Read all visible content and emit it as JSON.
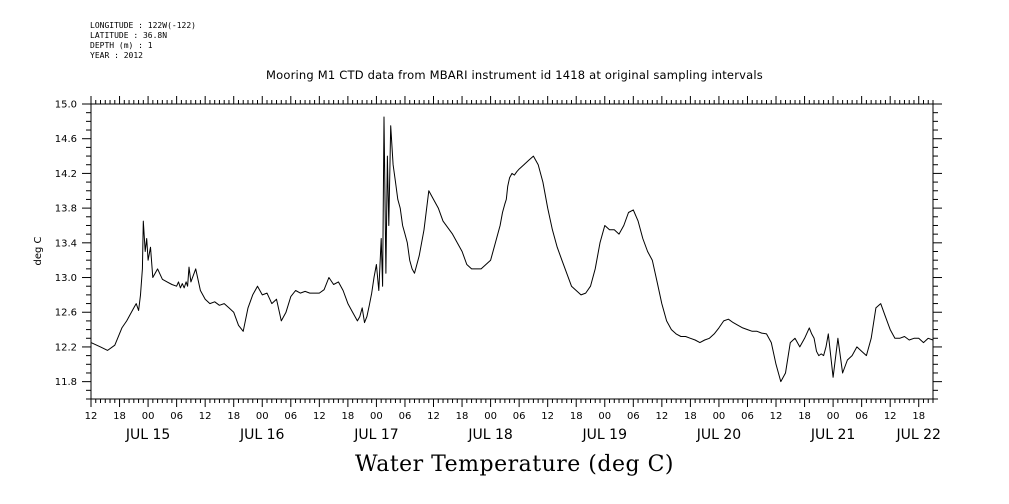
{
  "meta": {
    "longitude": "LONGITUDE : 122W(-122)",
    "latitude": "LATITUDE : 36.8N",
    "depth": "DEPTH (m) : 1",
    "year": "YEAR : 2012"
  },
  "chart_data": {
    "type": "line",
    "title": "Mooring M1 CTD data from MBARI instrument id 1418 at original sampling intervals",
    "xlabel": "Water Temperature (deg C)",
    "ylabel": "deg C",
    "ylim": [
      11.6,
      15.0
    ],
    "yticks": [
      "11.8",
      "12.2",
      "12.6",
      "13.0",
      "13.4",
      "13.8",
      "14.2",
      "14.6",
      "15.0"
    ],
    "x_unit": "hours since JUL 15 00:00",
    "xlim": [
      -12,
      165
    ],
    "hour_ticks": [
      {
        "h": -12,
        "label": "12"
      },
      {
        "h": -6,
        "label": "18"
      },
      {
        "h": 0,
        "label": "00"
      },
      {
        "h": 6,
        "label": "06"
      },
      {
        "h": 12,
        "label": "12"
      },
      {
        "h": 18,
        "label": "18"
      },
      {
        "h": 24,
        "label": "00"
      },
      {
        "h": 30,
        "label": "06"
      },
      {
        "h": 36,
        "label": "12"
      },
      {
        "h": 42,
        "label": "18"
      },
      {
        "h": 48,
        "label": "00"
      },
      {
        "h": 54,
        "label": "06"
      },
      {
        "h": 60,
        "label": "12"
      },
      {
        "h": 66,
        "label": "18"
      },
      {
        "h": 72,
        "label": "00"
      },
      {
        "h": 78,
        "label": "06"
      },
      {
        "h": 84,
        "label": "12"
      },
      {
        "h": 90,
        "label": "18"
      },
      {
        "h": 96,
        "label": "00"
      },
      {
        "h": 102,
        "label": "06"
      },
      {
        "h": 108,
        "label": "12"
      },
      {
        "h": 114,
        "label": "18"
      },
      {
        "h": 120,
        "label": "00"
      },
      {
        "h": 126,
        "label": "06"
      },
      {
        "h": 132,
        "label": "12"
      },
      {
        "h": 138,
        "label": "18"
      },
      {
        "h": 144,
        "label": "00"
      },
      {
        "h": 150,
        "label": "06"
      },
      {
        "h": 156,
        "label": "12"
      },
      {
        "h": 162,
        "label": "18"
      }
    ],
    "day_labels": [
      {
        "h": 0,
        "label": "JUL 15"
      },
      {
        "h": 24,
        "label": "JUL 16"
      },
      {
        "h": 48,
        "label": "JUL 17"
      },
      {
        "h": 72,
        "label": "JUL 18"
      },
      {
        "h": 96,
        "label": "JUL 19"
      },
      {
        "h": 120,
        "label": "JUL 20"
      },
      {
        "h": 144,
        "label": "JUL 21"
      },
      {
        "h": 162,
        "label": "JUL 22"
      }
    ],
    "series": [
      {
        "color": "#000000",
        "x": [
          -12,
          -10,
          -8.5,
          -7,
          -5.5,
          -4.5,
          -3.5,
          -3,
          -2.5,
          -2,
          -1.6,
          -1.2,
          -1.0,
          -0.6,
          -0.3,
          0,
          0.5,
          1,
          2,
          3,
          4,
          5,
          6,
          6.4,
          6.8,
          7.2,
          7.6,
          8,
          8.3,
          8.6,
          9,
          10,
          11,
          12,
          13,
          14,
          15,
          16,
          17,
          18,
          19,
          20,
          21,
          22,
          23,
          24,
          25,
          26,
          27,
          28,
          29,
          30,
          31,
          32,
          33,
          34,
          35,
          36,
          37,
          38,
          39,
          40,
          41,
          42,
          43,
          44,
          44.5,
          45,
          45.5,
          46,
          46.5,
          47,
          47.5,
          48,
          48.5,
          49,
          49.3,
          49.6,
          50,
          50.3,
          50.6,
          51,
          51.5,
          52,
          52.5,
          53,
          53.5,
          54,
          54.5,
          55,
          55.5,
          56,
          57,
          58,
          59,
          60,
          61,
          62,
          64,
          66,
          67,
          68,
          69,
          70,
          72,
          73,
          74,
          74.5,
          75,
          75.3,
          75.6,
          76,
          76.5,
          77,
          77.5,
          78,
          79,
          80,
          81,
          82,
          83,
          84,
          85,
          86,
          87,
          88,
          89,
          90,
          91,
          92,
          93,
          94,
          95,
          96,
          97,
          98,
          99,
          100,
          101,
          102,
          103,
          104,
          105,
          106,
          107,
          108,
          109,
          110,
          111,
          112,
          113,
          114,
          115,
          116,
          117,
          118,
          119,
          120,
          121,
          122,
          123,
          124,
          125,
          126,
          127,
          128,
          129,
          130,
          131,
          132,
          133,
          134,
          135,
          136,
          137,
          138,
          139,
          139.5,
          140,
          140.5,
          141,
          141.5,
          142,
          142.5,
          143,
          144,
          145,
          146,
          147,
          148,
          149,
          150,
          151,
          152,
          153,
          154,
          155,
          156,
          157,
          158,
          159,
          160,
          161,
          162,
          163,
          164,
          165
        ],
        "y": [
          12.25,
          12.2,
          12.16,
          12.22,
          12.42,
          12.5,
          12.6,
          12.65,
          12.7,
          12.62,
          12.8,
          13.1,
          13.65,
          13.3,
          13.45,
          13.2,
          13.35,
          13.0,
          13.1,
          12.98,
          12.95,
          12.92,
          12.9,
          12.95,
          12.88,
          12.93,
          12.88,
          12.95,
          12.9,
          13.12,
          12.95,
          13.1,
          12.85,
          12.75,
          12.7,
          12.72,
          12.68,
          12.7,
          12.65,
          12.6,
          12.45,
          12.38,
          12.65,
          12.8,
          12.9,
          12.8,
          12.82,
          12.7,
          12.75,
          12.5,
          12.6,
          12.78,
          12.85,
          12.82,
          12.84,
          12.82,
          12.82,
          12.82,
          12.86,
          13.0,
          12.92,
          12.95,
          12.85,
          12.7,
          12.6,
          12.5,
          12.55,
          12.65,
          12.48,
          12.55,
          12.68,
          12.82,
          13.0,
          13.15,
          12.85,
          13.45,
          12.9,
          14.85,
          13.05,
          14.4,
          13.6,
          14.75,
          14.3,
          14.1,
          13.9,
          13.8,
          13.6,
          13.5,
          13.4,
          13.2,
          13.1,
          13.05,
          13.25,
          13.55,
          14.0,
          13.9,
          13.8,
          13.65,
          13.5,
          13.3,
          13.15,
          13.1,
          13.1,
          13.1,
          13.2,
          13.4,
          13.6,
          13.75,
          13.85,
          13.9,
          14.05,
          14.15,
          14.2,
          14.18,
          14.22,
          14.25,
          14.3,
          14.35,
          14.4,
          14.3,
          14.1,
          13.8,
          13.55,
          13.35,
          13.2,
          13.05,
          12.9,
          12.85,
          12.8,
          12.82,
          12.9,
          13.1,
          13.4,
          13.6,
          13.55,
          13.55,
          13.5,
          13.6,
          13.75,
          13.78,
          13.65,
          13.45,
          13.3,
          13.2,
          12.95,
          12.7,
          12.5,
          12.4,
          12.35,
          12.32,
          12.32,
          12.3,
          12.28,
          12.25,
          12.28,
          12.3,
          12.35,
          12.42,
          12.5,
          12.52,
          12.48,
          12.45,
          12.42,
          12.4,
          12.38,
          12.38,
          12.36,
          12.35,
          12.25,
          12.0,
          11.8,
          11.9,
          12.25,
          12.3,
          12.2,
          12.3,
          12.42,
          12.35,
          12.3,
          12.15,
          12.1,
          12.12,
          12.1,
          12.2,
          12.35,
          11.85,
          12.3,
          11.9,
          12.05,
          12.1,
          12.2,
          12.15,
          12.1,
          12.3,
          12.65,
          12.7,
          12.55,
          12.4,
          12.3,
          12.3,
          12.32,
          12.28,
          12.3,
          12.3,
          12.25,
          12.3,
          12.28
        ]
      }
    ]
  }
}
